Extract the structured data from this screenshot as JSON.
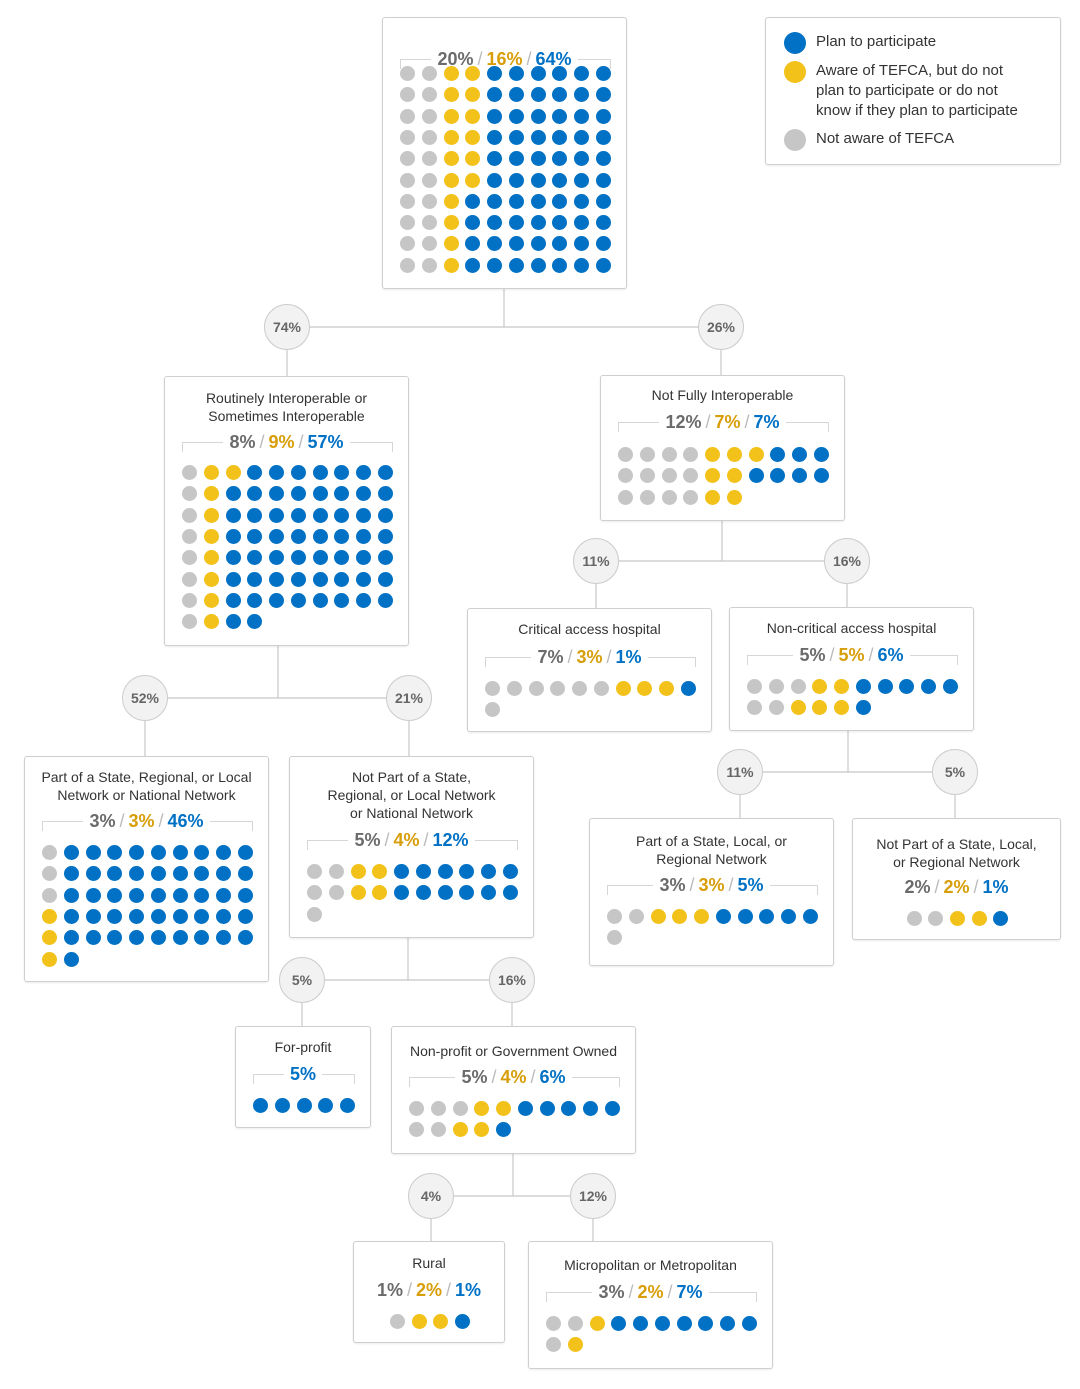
{
  "colors": {
    "not_aware": "#c6c6c6",
    "aware_not_plan": "#f2c21b",
    "plan": "#0071c5"
  },
  "legend": {
    "items": [
      {
        "label": "Plan to participate",
        "color": "#0071c5"
      },
      {
        "label": "Aware of TEFCA, but do not plan to participate or do not know if they plan to participate",
        "color": "#f2c21b"
      },
      {
        "label": "Not aware of TEFCA",
        "color": "#c6c6c6"
      }
    ]
  },
  "nodes": [
    {
      "id": "all",
      "title": [],
      "not_aware": 20,
      "aware": 16,
      "plan": 64
    },
    {
      "id": "routinely",
      "title": [
        "Routinely Interoperable or",
        "Sometimes Interoperable"
      ],
      "not_aware": 8,
      "aware": 9,
      "plan": 57
    },
    {
      "id": "not-fully",
      "title": [
        "Not Fully Interoperable"
      ],
      "not_aware": 12,
      "aware": 7,
      "plan": 7
    },
    {
      "id": "critical",
      "title": [
        "Critical access hospital"
      ],
      "not_aware": 7,
      "aware": 3,
      "plan": 1
    },
    {
      "id": "non-critical",
      "title": [
        "Non-critical access hospital"
      ],
      "not_aware": 5,
      "aware": 5,
      "plan": 6
    },
    {
      "id": "part-network",
      "title": [
        "Part of a State, Regional, or Local",
        "Network or  National Network"
      ],
      "not_aware": 3,
      "aware": 3,
      "plan": 46
    },
    {
      "id": "not-part-network",
      "title": [
        "Not Part of a State,",
        "Regional, or Local Network",
        "or  National Network"
      ],
      "not_aware": 5,
      "aware": 4,
      "plan": 12
    },
    {
      "id": "part-state-local",
      "title": [
        "Part of a State, Local, or",
        "Regional Network"
      ],
      "not_aware": 3,
      "aware": 3,
      "plan": 5
    },
    {
      "id": "not-part-state-local",
      "title": [
        "Not Part of a State, Local,",
        "or Regional Network"
      ],
      "not_aware": 2,
      "aware": 2,
      "plan": 1
    },
    {
      "id": "for-profit",
      "title": [
        "For-profit"
      ],
      "not_aware": 0,
      "aware": 0,
      "plan": 5,
      "plan_only": true
    },
    {
      "id": "non-profit",
      "title": [
        "Non-profit or Government Owned"
      ],
      "not_aware": 5,
      "aware": 4,
      "plan": 6
    },
    {
      "id": "rural",
      "title": [
        "Rural"
      ],
      "not_aware": 1,
      "aware": 2,
      "plan": 1
    },
    {
      "id": "metro",
      "title": [
        "Micropolitan or Metropolitan"
      ],
      "not_aware": 3,
      "aware": 2,
      "plan": 7
    }
  ],
  "branches": [
    "74%",
    "26%",
    "11%",
    "16%",
    "52%",
    "21%",
    "11%",
    "5%",
    "5%",
    "16%",
    "4%",
    "12%"
  ]
}
